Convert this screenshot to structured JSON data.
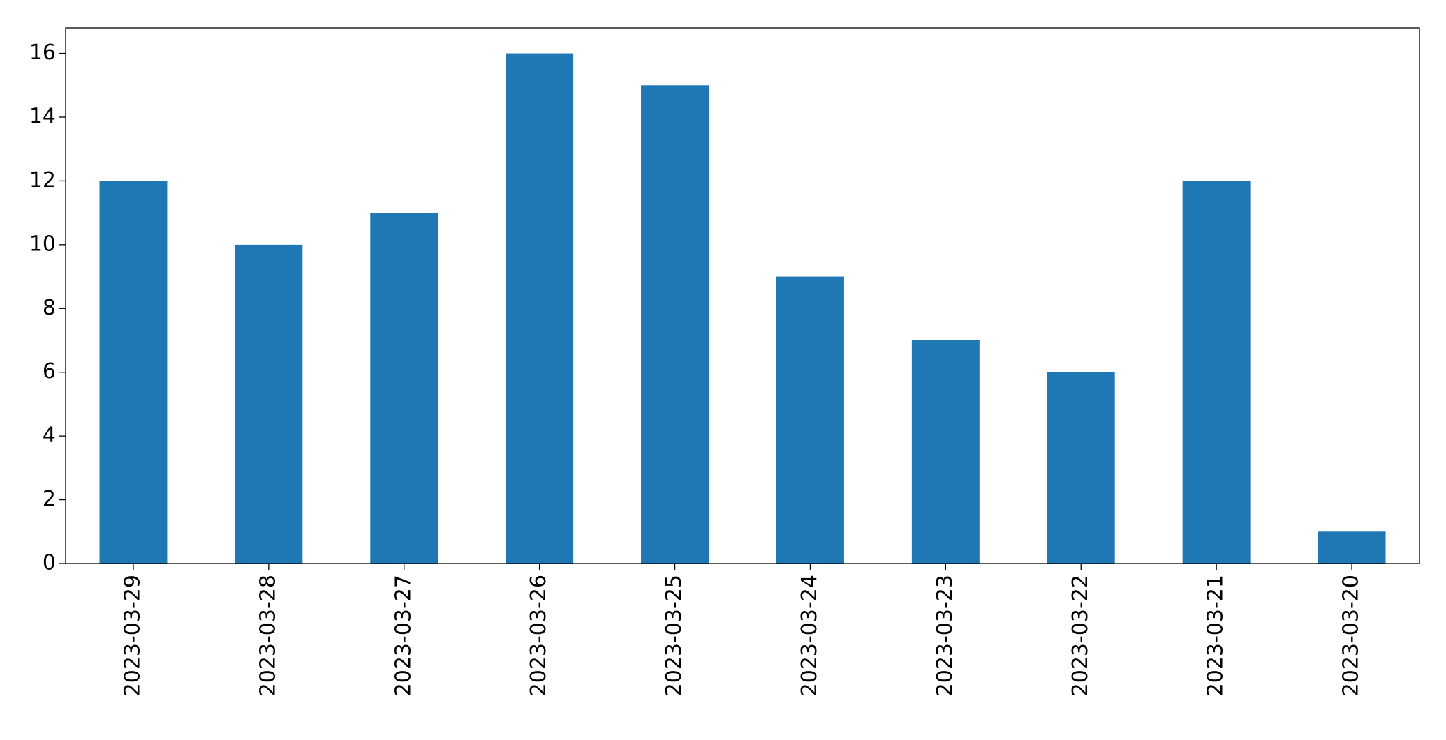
{
  "chart_data": {
    "type": "bar",
    "categories": [
      "2023-03-29",
      "2023-03-28",
      "2023-03-27",
      "2023-03-26",
      "2023-03-25",
      "2023-03-24",
      "2023-03-23",
      "2023-03-22",
      "2023-03-21",
      "2023-03-20"
    ],
    "values": [
      12,
      10,
      11,
      16,
      15,
      9,
      7,
      6,
      12,
      1
    ],
    "color": "#1f77b4",
    "ylim": [
      0,
      16.8
    ],
    "yticks": [
      0,
      2,
      4,
      6,
      8,
      10,
      12,
      14,
      16
    ],
    "grid": false
  }
}
